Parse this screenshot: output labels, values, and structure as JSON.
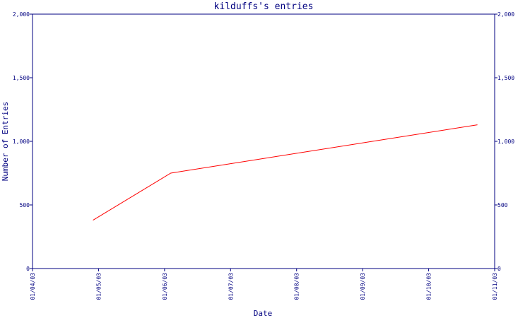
{
  "chart_data": {
    "type": "line",
    "title": "kilduffs's entries",
    "xlabel": "Date",
    "ylabel": "Number of Entries",
    "x_ticks": [
      "01/04/03",
      "01/05/03",
      "01/06/03",
      "01/07/03",
      "01/08/03",
      "01/09/03",
      "01/10/03",
      "01/11/03"
    ],
    "y_ticks": [
      "0",
      "500",
      "1,000",
      "1,500",
      "2,000"
    ],
    "ylim": [
      0,
      2000
    ],
    "xlim": [
      "2003-04-01",
      "2003-11-01"
    ],
    "grid": false,
    "series": [
      {
        "color": "#ff0000",
        "points": [
          {
            "x": "2003-04-29",
            "y": 380
          },
          {
            "x": "2003-06-04",
            "y": 750
          },
          {
            "x": "2003-10-24",
            "y": 1130
          }
        ]
      }
    ],
    "colors": {
      "axis": "#000080",
      "text": "#000080",
      "line": "#ff0000"
    }
  }
}
